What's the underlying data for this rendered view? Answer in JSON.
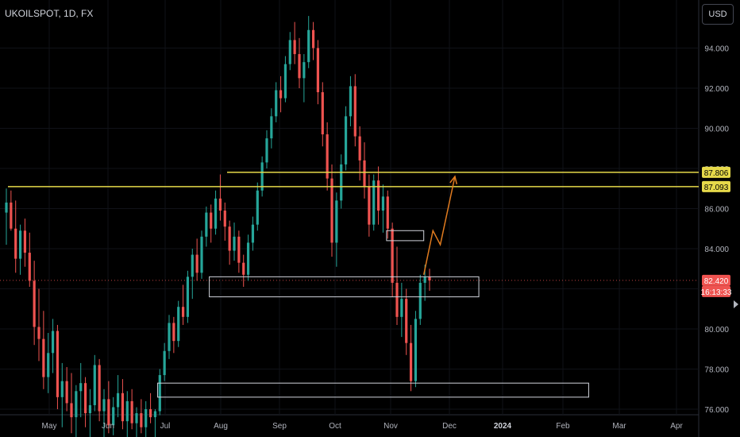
{
  "header": {
    "symbol": "UKOILSPOT, 1D, FX",
    "currency_button": "USD"
  },
  "chart_data": {
    "type": "candlestick",
    "xlabel": "",
    "ylabel": "",
    "ylim": [
      75.6,
      96.0
    ],
    "y_ticks": [
      "76.000",
      "78.000",
      "80.000",
      "82.000",
      "84.000",
      "86.000",
      "88.000",
      "90.000",
      "92.000",
      "94.000"
    ],
    "x_ticks": [
      "May",
      "Jun",
      "Jul",
      "Aug",
      "Sep",
      "Oct",
      "Nov",
      "Dec",
      "2024",
      "Feb",
      "Mar",
      "Apr"
    ],
    "series": [
      {
        "values": [
          [
            85.8,
            87.0,
            84.2,
            86.3
          ],
          [
            86.3,
            86.9,
            84.9,
            85.0
          ],
          [
            85.0,
            86.4,
            82.8,
            83.5
          ],
          [
            83.5,
            85.2,
            82.7,
            84.9
          ],
          [
            84.9,
            85.5,
            83.1,
            83.8
          ],
          [
            83.8,
            84.8,
            82.1,
            82.4
          ],
          [
            82.4,
            83.4,
            79.2,
            80.1
          ],
          [
            80.1,
            82.0,
            78.4,
            79.5
          ],
          [
            79.5,
            80.9,
            77.0,
            77.6
          ],
          [
            77.6,
            79.8,
            76.8,
            78.8
          ],
          [
            78.8,
            80.5,
            77.8,
            79.9
          ],
          [
            79.9,
            80.2,
            76.0,
            76.6
          ],
          [
            76.6,
            78.3,
            75.1,
            77.4
          ],
          [
            77.4,
            78.1,
            75.9,
            76.3
          ],
          [
            76.3,
            77.8,
            74.8,
            75.6
          ],
          [
            75.6,
            77.2,
            74.4,
            76.9
          ],
          [
            76.9,
            78.3,
            75.6,
            77.3
          ],
          [
            77.3,
            77.6,
            75.1,
            75.8
          ],
          [
            75.8,
            77.0,
            74.5,
            76.2
          ],
          [
            76.2,
            78.7,
            75.9,
            78.2
          ],
          [
            78.2,
            78.5,
            75.4,
            75.9
          ],
          [
            75.9,
            77.0,
            74.3,
            76.5
          ],
          [
            76.5,
            77.4,
            74.8,
            75.2
          ],
          [
            75.2,
            76.6,
            74.7,
            76.1
          ],
          [
            76.1,
            77.7,
            75.6,
            76.8
          ],
          [
            76.8,
            77.5,
            75.0,
            75.4
          ],
          [
            75.4,
            76.9,
            74.4,
            76.4
          ],
          [
            76.4,
            77.0,
            75.0,
            75.3
          ],
          [
            75.3,
            76.1,
            74.3,
            75.8
          ],
          [
            75.8,
            76.5,
            74.8,
            75.1
          ],
          [
            75.1,
            76.4,
            74.6,
            76.0
          ],
          [
            76.0,
            76.8,
            75.3,
            75.6
          ],
          [
            75.6,
            76.0,
            74.6,
            75.9
          ],
          [
            75.9,
            78.0,
            75.7,
            77.7
          ],
          [
            77.7,
            79.3,
            77.4,
            78.9
          ],
          [
            78.9,
            80.7,
            78.5,
            80.3
          ],
          [
            80.3,
            80.6,
            78.8,
            79.4
          ],
          [
            79.4,
            81.4,
            79.1,
            81.1
          ],
          [
            81.1,
            82.2,
            80.2,
            80.6
          ],
          [
            80.6,
            82.9,
            80.3,
            82.6
          ],
          [
            82.6,
            84.0,
            81.5,
            83.7
          ],
          [
            83.7,
            84.5,
            82.4,
            82.8
          ],
          [
            82.8,
            84.9,
            82.5,
            84.6
          ],
          [
            84.6,
            86.1,
            84.1,
            85.8
          ],
          [
            85.8,
            86.2,
            84.3,
            85.0
          ],
          [
            85.0,
            86.9,
            84.7,
            86.5
          ],
          [
            86.5,
            87.7,
            85.4,
            85.9
          ],
          [
            85.9,
            86.3,
            84.4,
            85.1
          ],
          [
            85.1,
            85.4,
            83.2,
            83.9
          ],
          [
            83.9,
            85.3,
            83.4,
            84.6
          ],
          [
            84.6,
            84.9,
            82.8,
            83.3
          ],
          [
            83.3,
            83.7,
            82.1,
            82.7
          ],
          [
            82.7,
            84.7,
            82.4,
            84.3
          ],
          [
            84.3,
            85.6,
            83.9,
            85.2
          ],
          [
            85.2,
            87.3,
            84.9,
            86.9
          ],
          [
            86.9,
            88.6,
            86.6,
            88.3
          ],
          [
            88.3,
            89.9,
            88.0,
            89.5
          ],
          [
            89.5,
            91.0,
            89.0,
            90.6
          ],
          [
            90.6,
            92.3,
            90.3,
            91.9
          ],
          [
            91.9,
            92.6,
            90.8,
            91.5
          ],
          [
            91.5,
            93.6,
            91.3,
            93.2
          ],
          [
            93.2,
            94.8,
            92.9,
            94.4
          ],
          [
            94.4,
            95.3,
            93.2,
            93.7
          ],
          [
            93.7,
            94.5,
            92.0,
            92.5
          ],
          [
            92.5,
            93.7,
            91.3,
            93.3
          ],
          [
            93.3,
            95.6,
            93.0,
            94.9
          ],
          [
            94.9,
            95.3,
            93.4,
            94.0
          ],
          [
            94.0,
            94.4,
            91.2,
            91.8
          ],
          [
            91.8,
            92.3,
            89.1,
            89.7
          ],
          [
            89.7,
            90.3,
            86.9,
            87.5
          ],
          [
            87.5,
            88.2,
            83.6,
            84.3
          ],
          [
            84.3,
            86.8,
            83.1,
            86.4
          ],
          [
            86.4,
            88.7,
            86.0,
            88.2
          ],
          [
            88.2,
            91.1,
            87.9,
            90.6
          ],
          [
            90.6,
            92.6,
            90.1,
            92.1
          ],
          [
            92.1,
            92.7,
            89.1,
            89.6
          ],
          [
            89.6,
            90.1,
            87.4,
            88.4
          ],
          [
            88.4,
            89.3,
            86.5,
            87.1
          ],
          [
            87.1,
            87.7,
            84.6,
            85.2
          ],
          [
            85.2,
            87.7,
            84.9,
            87.4
          ],
          [
            87.4,
            88.1,
            85.2,
            85.9
          ],
          [
            85.9,
            87.2,
            84.8,
            86.6
          ],
          [
            86.6,
            86.9,
            84.5,
            85.0
          ],
          [
            85.0,
            85.3,
            81.6,
            82.3
          ],
          [
            82.3,
            84.1,
            80.2,
            80.6
          ],
          [
            80.6,
            82.3,
            79.6,
            81.5
          ],
          [
            81.5,
            82.0,
            78.7,
            79.3
          ],
          [
            79.3,
            80.2,
            76.9,
            77.4
          ],
          [
            77.4,
            80.9,
            77.1,
            80.5
          ],
          [
            80.5,
            82.7,
            80.2,
            82.3
          ],
          [
            82.3,
            83.2,
            81.4,
            82.6
          ],
          [
            82.6,
            83.0,
            81.9,
            82.42
          ]
        ]
      }
    ],
    "annotations": {
      "resistance_lines": [
        87.806,
        87.093
      ],
      "zones": [
        {
          "x": [
            "Jul 25",
            "Dec 17"
          ],
          "y": [
            81.6,
            82.6
          ]
        },
        {
          "x": [
            "Oct 29",
            "Nov 19"
          ],
          "y": [
            84.4,
            84.9
          ]
        },
        {
          "x": [
            "Jun 28",
            "Feb 15"
          ],
          "y": [
            76.6,
            77.3
          ]
        }
      ],
      "projection": {
        "points": [
          [
            "Nov 19",
            82.7
          ],
          [
            "Nov 24",
            84.9
          ],
          [
            "Nov 28",
            84.2
          ],
          [
            "Dec 4",
            87.6
          ]
        ]
      },
      "current_price_line": 82.42
    },
    "price_labels": {
      "line_upper": "87.806",
      "line_lower": "87.093",
      "last_price": "82.420",
      "countdown": "16:13:33"
    },
    "colors": {
      "up": "#26a69a",
      "down": "#ef5350",
      "background": "#000000",
      "level_line": "#e6d94a",
      "projection": "#e07b1f",
      "zone_border": "#d1d4dc"
    }
  }
}
